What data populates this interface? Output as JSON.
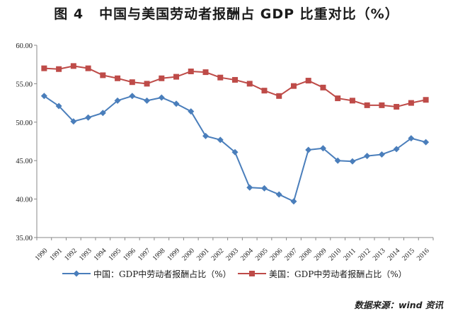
{
  "figure": {
    "number": "图 4",
    "title": "中国与美国劳动者报酬占 GDP 比重对比（%）",
    "source": "数据来源：wind 资讯"
  },
  "chart_data": {
    "type": "line",
    "title": "中国与美国劳动者报酬占 GDP 比重对比（%）",
    "xlabel": "",
    "ylabel": "",
    "ylim": [
      35,
      60
    ],
    "yticks": [
      "35.00",
      "40.00",
      "45.00",
      "50.00",
      "55.00",
      "60.00"
    ],
    "grid": false,
    "legend_position": "bottom",
    "categories": [
      "1990",
      "1991",
      "1992",
      "1993",
      "1994",
      "1995",
      "1996",
      "1997",
      "1998",
      "1999",
      "2000",
      "2001",
      "2002",
      "2003",
      "2004",
      "2005",
      "2006",
      "2007",
      "2008",
      "2009",
      "2010",
      "2011",
      "2012",
      "2013",
      "2014",
      "2015",
      "2016"
    ],
    "series": [
      {
        "name": "中国：GDP中劳动者报酬占比（%）",
        "color": "#4a7ebb",
        "marker": "diamond",
        "values": [
          53.4,
          52.1,
          50.1,
          50.6,
          51.2,
          52.8,
          53.4,
          52.8,
          53.2,
          52.4,
          51.4,
          48.2,
          47.7,
          46.1,
          41.5,
          41.4,
          40.6,
          39.7,
          46.4,
          46.6,
          45.0,
          44.9,
          45.6,
          45.8,
          46.5,
          47.9,
          47.4
        ]
      },
      {
        "name": "美国：GDP中劳动者报酬占比（%）",
        "color": "#be4b48",
        "marker": "square",
        "values": [
          57.0,
          56.9,
          57.3,
          57.0,
          56.1,
          55.7,
          55.2,
          55.0,
          55.7,
          55.9,
          56.6,
          56.5,
          55.8,
          55.5,
          55.0,
          54.1,
          53.4,
          54.7,
          55.4,
          54.5,
          53.1,
          52.8,
          52.2,
          52.2,
          52.0,
          52.5,
          52.9
        ]
      }
    ]
  }
}
